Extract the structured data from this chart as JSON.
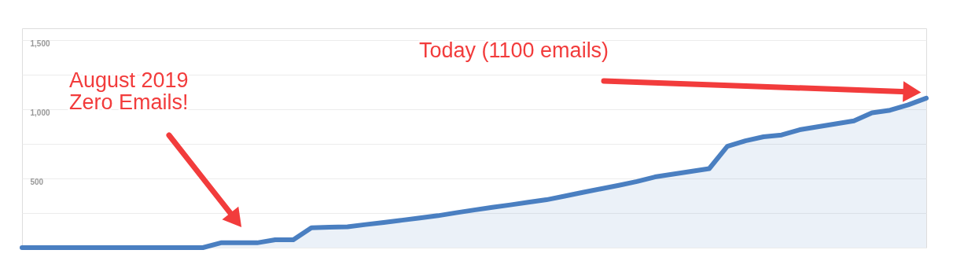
{
  "chart_data": {
    "type": "area",
    "annotations": [
      "August 2019\nZero Emails!",
      "Today (1100 emails)"
    ],
    "categories": [
      null,
      null,
      null,
      null,
      null,
      null,
      null,
      null,
      null,
      null,
      null,
      null,
      null,
      null,
      null,
      null,
      null,
      null,
      null,
      null,
      null,
      null,
      null,
      null,
      null,
      null,
      null,
      null,
      null,
      null,
      null,
      null,
      null,
      null,
      null,
      null,
      null,
      null,
      null,
      null,
      null,
      null,
      null,
      null,
      null,
      null,
      null,
      null,
      null,
      null,
      null
    ],
    "series": [
      {
        "color": "#4a7fc1",
        "values": [
          0,
          0,
          0,
          0,
          0,
          0,
          0,
          0,
          0,
          0,
          0,
          35,
          35,
          35,
          57,
          57,
          144,
          147,
          151,
          167,
          182,
          198,
          214,
          231,
          252,
          272,
          291,
          309,
          328,
          346,
          372,
          399,
          425,
          450,
          478,
          511,
          531,
          551,
          571,
          732,
          772,
          801,
          814,
          852,
          873,
          895,
          916,
          974,
          993,
          1032,
          1080
        ]
      }
    ],
    "ylim": [
      0,
      1585
    ],
    "yticks": [
      {
        "value": 0,
        "label": null
      },
      {
        "value": 250,
        "label": null
      },
      500,
      {
        "value": 750,
        "label": null
      },
      {
        "value": 1000,
        "label": "1,000"
      },
      {
        "value": 1250,
        "label": null
      },
      {
        "value": 1500,
        "label": "1,500"
      }
    ],
    "grid": "y",
    "marker": "none",
    "line_style": "solid"
  }
}
